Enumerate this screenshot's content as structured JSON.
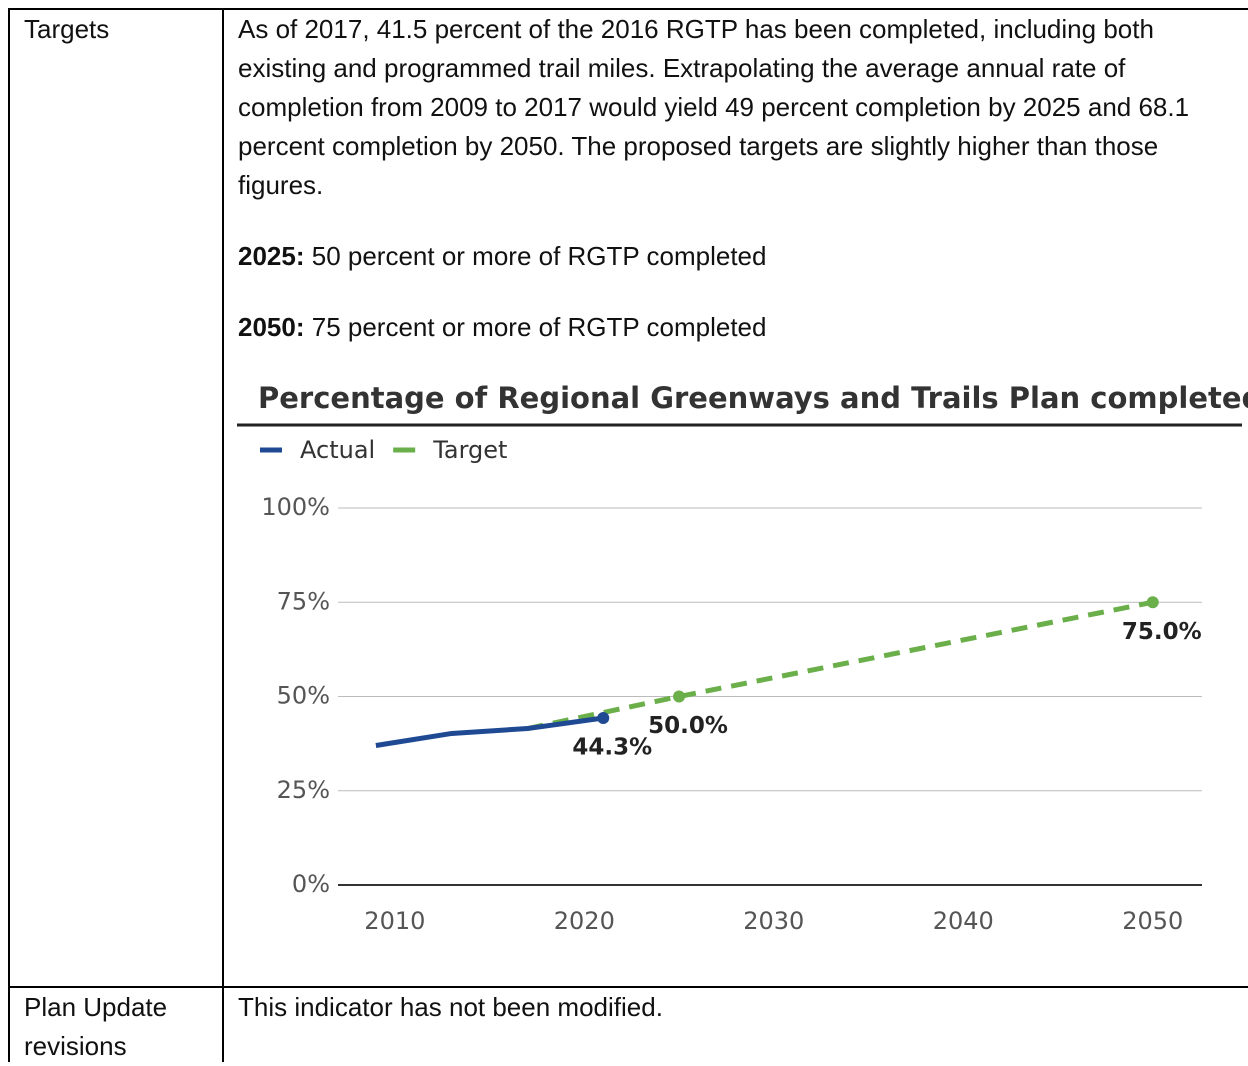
{
  "table": {
    "rows": [
      {
        "label": "Targets",
        "text": "As of 2017, 41.5 percent of the 2016 RGTP has been completed, including both existing and programmed trail miles. Extrapolating the average annual rate of completion from 2009 to 2017 would yield 49 percent completion by 2025 and 68.1 percent completion by 2050. The proposed targets are slightly higher than those figures.",
        "targets": [
          {
            "year": "2025:",
            "text": "50 percent or more of RGTP completed"
          },
          {
            "year": "2050:",
            "text": "75 percent or more of RGTP completed"
          }
        ],
        "chart": {
          "type": "line",
          "title": "Percentage of Regional Greenways and Trails Plan completed",
          "series": [
            {
              "name": "Actual",
              "color": "#1f4a93",
              "x": [
                2009,
                2013,
                2017,
                2021
              ],
              "values": [
                37,
                40.2,
                41.5,
                44.3
              ],
              "value_labels": [
                null,
                null,
                null,
                "44.3%"
              ],
              "dashed": false
            },
            {
              "name": "Target",
              "color": "#6aaf4a",
              "x": [
                2017,
                2025,
                2050
              ],
              "values": [
                41.5,
                50,
                75
              ],
              "value_labels": [
                null,
                "50.0%",
                "75.0%"
              ],
              "dashed": true
            }
          ],
          "xlim": [
            2007,
            2052.6
          ],
          "xticks": [
            2010,
            2020,
            2030,
            2040,
            2050
          ],
          "ylim": [
            0,
            100
          ],
          "yticks": [
            {
              "value": 0,
              "label": "0%"
            },
            {
              "value": 25,
              "label": "25%"
            },
            {
              "value": 50,
              "label": "50%"
            },
            {
              "value": 75,
              "label": "75%"
            },
            {
              "value": 100,
              "label": "100%"
            }
          ],
          "grid": true,
          "legend": "top"
        }
      },
      {
        "label": "Plan Update revisions",
        "text": "This indicator has not been modified."
      }
    ]
  }
}
